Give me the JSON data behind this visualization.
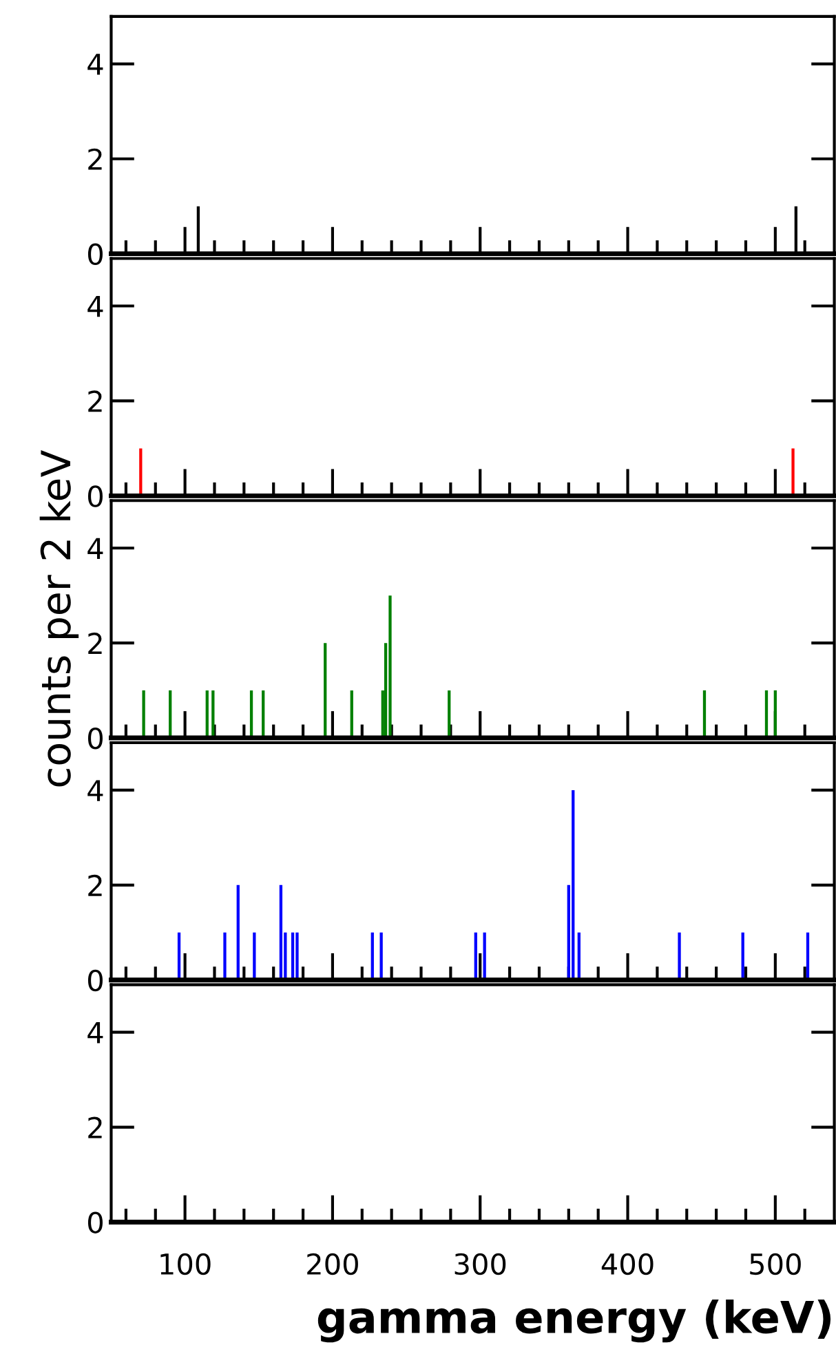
{
  "chart_data": [
    {
      "type": "bar",
      "x": [
        109,
        514
      ],
      "values": [
        1,
        1
      ],
      "color": "#000000",
      "xlim": [
        50,
        540
      ],
      "xticks": [
        100,
        200,
        300,
        400,
        500
      ],
      "ylim": [
        0,
        5
      ],
      "yticks": [
        0,
        2,
        4
      ],
      "tick_labels": "y",
      "legend": false
    },
    {
      "type": "bar",
      "x": [
        70,
        512
      ],
      "values": [
        1,
        1
      ],
      "color": "#ff0000",
      "xlim": [
        50,
        540
      ],
      "xticks": [
        100,
        200,
        300,
        400,
        500
      ],
      "ylim": [
        0,
        5
      ],
      "yticks": [
        0,
        2,
        4
      ],
      "tick_labels": "y",
      "legend": false
    },
    {
      "type": "bar",
      "x": [
        72,
        90,
        115,
        119,
        145,
        153,
        195,
        213,
        234,
        236,
        239,
        279,
        452,
        494,
        500
      ],
      "values": [
        1,
        1,
        1,
        1,
        1,
        1,
        2,
        1,
        1,
        2,
        3,
        1,
        1,
        1,
        1
      ],
      "color": "#008000",
      "ylabel": "counts per 2 keV",
      "xlim": [
        50,
        540
      ],
      "xticks": [
        100,
        200,
        300,
        400,
        500
      ],
      "ylim": [
        0,
        5
      ],
      "yticks": [
        0,
        2,
        4
      ],
      "tick_labels": "y",
      "legend": false
    },
    {
      "type": "bar",
      "x": [
        96,
        127,
        136,
        147,
        165,
        168,
        173,
        176,
        227,
        233,
        297,
        303,
        360,
        363,
        367,
        435,
        478,
        522
      ],
      "values": [
        1,
        1,
        2,
        1,
        2,
        1,
        1,
        1,
        1,
        1,
        1,
        1,
        2,
        4,
        1,
        1,
        1,
        1
      ],
      "color": "#0000ff",
      "xlim": [
        50,
        540
      ],
      "xticks": [
        100,
        200,
        300,
        400,
        500
      ],
      "ylim": [
        0,
        5
      ],
      "yticks": [
        0,
        2,
        4
      ],
      "tick_labels": "y",
      "legend": false
    },
    {
      "type": "bar",
      "xlabel": "gamma energy (keV)",
      "xlim": [
        50,
        540
      ],
      "xticks": [
        100,
        200,
        300,
        400,
        500
      ],
      "ylim": [
        0,
        5
      ],
      "yticks": [
        0,
        2,
        4
      ],
      "legend": false
    }
  ]
}
